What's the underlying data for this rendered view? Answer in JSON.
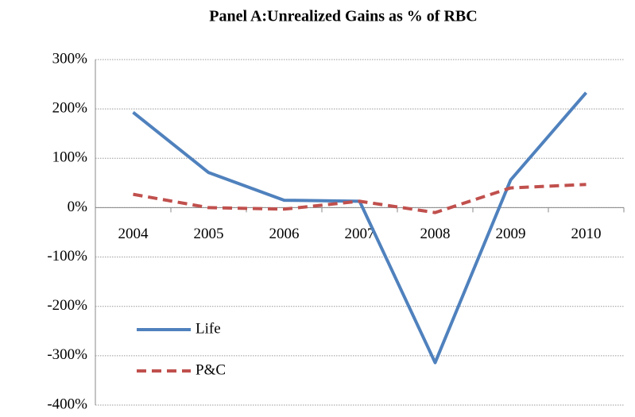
{
  "chart_data": {
    "type": "line",
    "title": "Panel A:Unrealized Gains as % of RBC",
    "categories": [
      "2004",
      "2005",
      "2006",
      "2007",
      "2008",
      "2009",
      "2010"
    ],
    "series": [
      {
        "name": "Life",
        "color": "#4f81bd",
        "dash": false,
        "values": [
          193,
          71,
          15,
          13,
          -314,
          56,
          233
        ]
      },
      {
        "name": "P&C",
        "color": "#c0504d",
        "dash": true,
        "values": [
          27,
          0,
          -3,
          13,
          -10,
          40,
          47
        ]
      }
    ],
    "ylim": [
      -400,
      300
    ],
    "yticks": [
      {
        "value": -400,
        "label": "-400%"
      },
      {
        "value": -300,
        "label": "-300%"
      },
      {
        "value": -200,
        "label": "-200%"
      },
      {
        "value": -100,
        "label": "-100%"
      },
      {
        "value": 0,
        "label": "0%"
      },
      {
        "value": 100,
        "label": "100%"
      },
      {
        "value": 200,
        "label": "200%"
      },
      {
        "value": 300,
        "label": "300%"
      }
    ],
    "grid": true,
    "legend": "lower left"
  }
}
